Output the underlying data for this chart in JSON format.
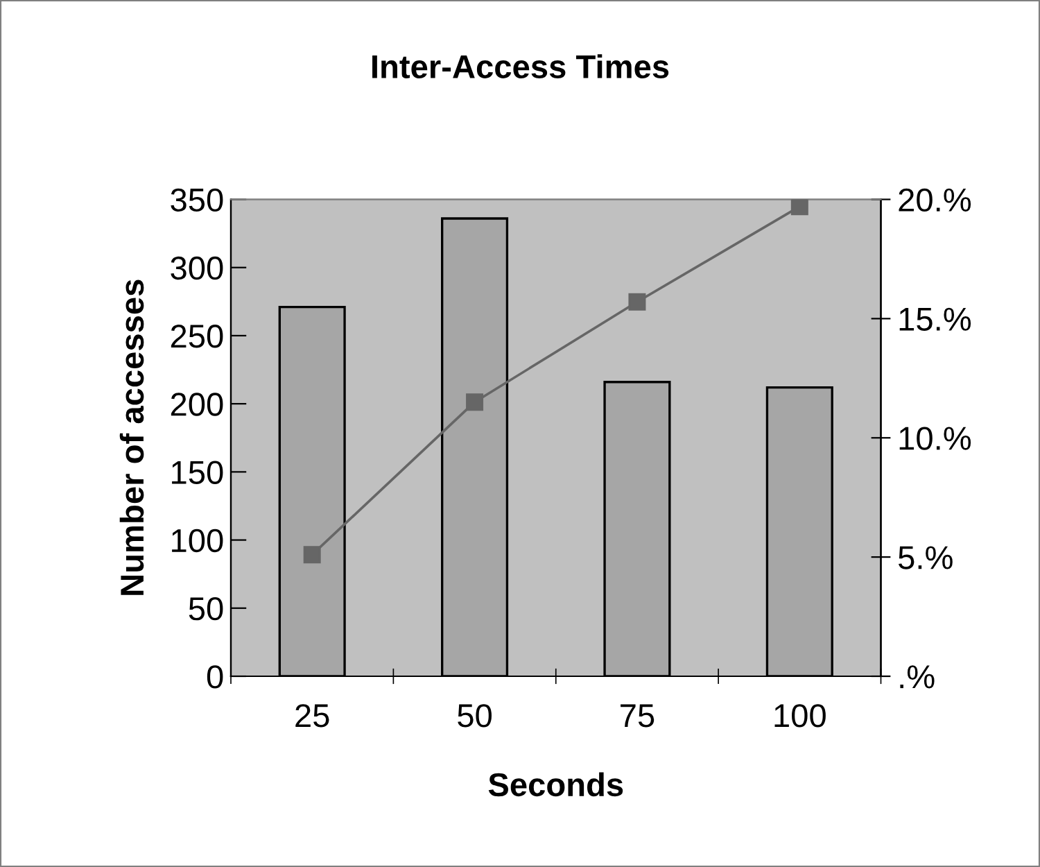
{
  "chart_data": {
    "type": "bar",
    "title": "Inter-Access Times",
    "xlabel": "Seconds",
    "ylabel": "Number of accesses",
    "categories": [
      "25",
      "50",
      "75",
      "100"
    ],
    "series": [
      {
        "color": "#a6a6a6",
        "values": [
          271,
          336,
          216,
          212
        ]
      },
      {
        "type": "line",
        "axis": "y2",
        "color": "#666666",
        "marker": "square",
        "line_style": "solid",
        "values": [
          5.1,
          11.5,
          15.7,
          19.7
        ]
      }
    ],
    "ylim": [
      0,
      350
    ],
    "yticks": [
      0,
      50,
      100,
      150,
      200,
      250,
      300,
      350
    ],
    "y2lim": [
      0,
      20
    ],
    "y2ticks": [
      {
        "value": 0,
        "label": ".%"
      },
      {
        "value": 5,
        "label": "5.%"
      },
      {
        "value": 10,
        "label": "10.%"
      },
      {
        "value": 15,
        "label": "15.%"
      },
      {
        "value": 20,
        "label": "20.%"
      }
    ],
    "grid": false,
    "legend": false
  }
}
